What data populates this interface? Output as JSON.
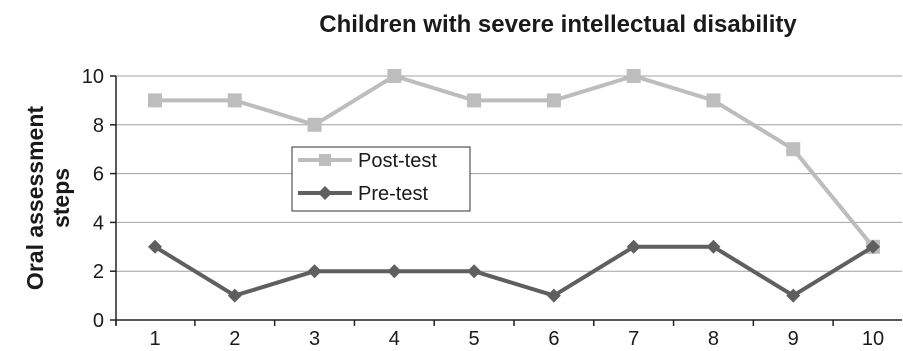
{
  "chart_data": {
    "type": "line",
    "title": "Children with severe intellectual disability",
    "ylabel_lines": [
      "Oral assessment",
      "steps"
    ],
    "x": [
      1,
      2,
      3,
      4,
      5,
      6,
      7,
      8,
      9,
      10
    ],
    "x_tick_labels": [
      "1",
      "2",
      "3",
      "4",
      "5",
      "6",
      "7",
      "8",
      "9",
      "10"
    ],
    "y_ticks": [
      0,
      2,
      4,
      6,
      8,
      10
    ],
    "y_tick_labels": [
      "0",
      "2",
      "4",
      "6",
      "8",
      "10"
    ],
    "ylim": [
      0,
      10
    ],
    "grid": "horizontal",
    "legend_position": "center-left",
    "series": [
      {
        "name": "Post-test",
        "marker": "square",
        "color": "#bdbdbd",
        "values": [
          9,
          9,
          8,
          10,
          9,
          9,
          10,
          9,
          7,
          3
        ]
      },
      {
        "name": "Pre-test",
        "marker": "diamond",
        "color": "#5f5f5f",
        "values": [
          3,
          1,
          2,
          2,
          2,
          1,
          3,
          3,
          1,
          3
        ]
      }
    ]
  }
}
